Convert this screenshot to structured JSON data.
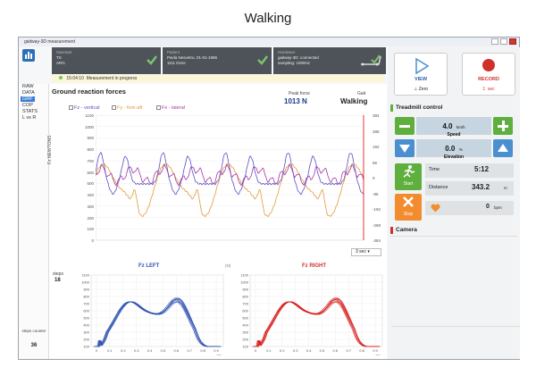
{
  "page_title": "Walking",
  "window": {
    "title": "gaitway-3D measurement"
  },
  "header": {
    "operator_label": "Operator",
    "operator_line1": "TS",
    "operator_line2": "ARG",
    "patient_label": "Patient",
    "patient_line1": "Pavla Nesvetru, 01-01-1996",
    "patient_line2": "1111 Dnze",
    "hardware_label": "Hardware",
    "hardware_line1": "gaitway-3D: connected",
    "hardware_line2": "sampling: 1000Hz"
  },
  "status": {
    "time": "15:04:10",
    "text": "Measurement in progress"
  },
  "sidebar": {
    "items": [
      "RAW",
      "DATA",
      "GRF",
      "COP",
      "STATS",
      "L vs R"
    ],
    "selected": "GRF",
    "steps_counter_label": "steps counter",
    "steps_counter_value": "36"
  },
  "grf": {
    "title": "Ground reaction forces",
    "legend": [
      {
        "label": "Fz - vertical",
        "color": "#5b4fc7"
      },
      {
        "label": "Fy - fore-aft",
        "color": "#e39a3a"
      },
      {
        "label": "Fx - lateral",
        "color": "#a03aa8"
      }
    ],
    "peak_label": "Peak force",
    "peak_value": "1013 N",
    "gait_label": "Gait",
    "gait_value": "Walking",
    "ylabel": "Fz NEWTONS",
    "window_select": "3 sec",
    "y_ticks": [
      "1100",
      "1000",
      "900",
      "800",
      "700",
      "600",
      "500",
      "400",
      "300",
      "200",
      "100",
      "0"
    ],
    "y2_ticks": [
      "384",
      "288",
      "192",
      "96",
      "0",
      "-96",
      "-192",
      "-288",
      "-384"
    ]
  },
  "footprints": {
    "steps_label": "steps",
    "steps_value": "18",
    "left_title": "Fz LEFT",
    "right_title": "Fz RIGHT",
    "n_label": "(N)",
    "y_ticks": [
      "1100",
      "1000",
      "900",
      "800",
      "700",
      "600",
      "500",
      "400",
      "300",
      "200",
      "100"
    ],
    "x_ticks": [
      "0",
      "0.1",
      "0.2",
      "0.3",
      "0.4",
      "0.5",
      "0.6",
      "0.7",
      "0.8",
      "0.9"
    ],
    "x_unit": "sec"
  },
  "controls": {
    "view_label": "VIEW",
    "zero_label": "⊥ Zero",
    "record_label": "RECORD",
    "rec_seconds": "sec",
    "rec_value": "1",
    "treadmill_title": "Treadmill control",
    "speed_value": "4.0",
    "speed_unit": "km/h",
    "speed_label": "Speed",
    "elevation_value": "0.0",
    "elevation_unit": "%",
    "elevation_label": "Elevation",
    "start_label": "Start",
    "stop_label": "Stop",
    "time_label": "Time",
    "time_value": "5:12",
    "distance_label": "Distance",
    "distance_value": "343.2",
    "distance_unit": "m",
    "hr_value": "0",
    "hr_unit": "bpm",
    "camera_title": "Camera"
  },
  "colors": {
    "accent_green": "#5faf3f",
    "accent_blue": "#4a8fd0",
    "record_red": "#d0302a",
    "header_dark": "#4d5358"
  }
}
